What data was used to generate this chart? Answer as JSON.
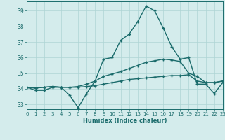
{
  "xlabel": "Humidex (Indice chaleur)",
  "background_color": "#d4ecec",
  "grid_color": "#aed4d4",
  "line_color": "#1a6b6b",
  "x": [
    0,
    1,
    2,
    3,
    4,
    5,
    6,
    7,
    8,
    9,
    10,
    11,
    12,
    13,
    14,
    15,
    16,
    17,
    18,
    19,
    20,
    21,
    22,
    23
  ],
  "series": [
    [
      34.1,
      33.9,
      33.9,
      34.1,
      34.1,
      33.6,
      32.8,
      33.7,
      34.5,
      35.9,
      36.0,
      37.1,
      37.5,
      38.3,
      39.3,
      39.0,
      37.9,
      36.7,
      35.9,
      36.0,
      34.3,
      34.3,
      33.7,
      34.4
    ],
    [
      34.1,
      34.05,
      34.1,
      34.15,
      34.1,
      34.1,
      34.15,
      34.3,
      34.5,
      34.8,
      34.95,
      35.1,
      35.3,
      35.5,
      35.7,
      35.8,
      35.9,
      35.85,
      35.75,
      35.0,
      34.8,
      34.4,
      34.4,
      34.5
    ],
    [
      34.1,
      34.05,
      34.1,
      34.15,
      34.1,
      34.1,
      34.1,
      34.15,
      34.2,
      34.3,
      34.4,
      34.5,
      34.6,
      34.65,
      34.7,
      34.75,
      34.8,
      34.85,
      34.85,
      34.9,
      34.5,
      34.4,
      34.4,
      34.5
    ]
  ],
  "ylim": [
    32.7,
    39.6
  ],
  "yticks": [
    33,
    34,
    35,
    36,
    37,
    38,
    39
  ],
  "xlim": [
    0,
    23
  ],
  "markersize": 3,
  "linewidth": 1.0
}
